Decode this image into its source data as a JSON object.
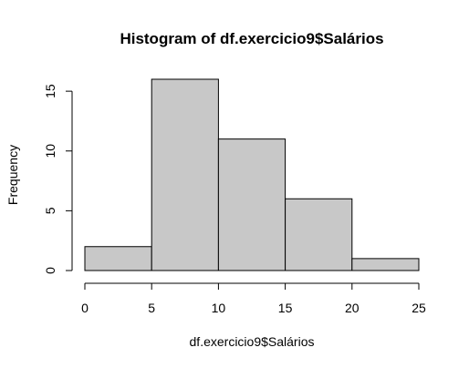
{
  "chart_data": {
    "type": "bar",
    "title": "Histogram of df.exercicio9$Salários",
    "xlabel": "df.exercicio9$Salários",
    "ylabel": "Frequency",
    "bins": [
      {
        "from": 0,
        "to": 5,
        "value": 2
      },
      {
        "from": 5,
        "to": 10,
        "value": 16
      },
      {
        "from": 10,
        "to": 15,
        "value": 11
      },
      {
        "from": 15,
        "to": 20,
        "value": 6
      },
      {
        "from": 20,
        "to": 25,
        "value": 1
      }
    ],
    "xlim": [
      0,
      25
    ],
    "ylim": [
      0,
      16
    ],
    "xticks": [
      0,
      5,
      10,
      15,
      20,
      25
    ],
    "yticks": [
      0,
      5,
      10,
      15
    ],
    "colors": {
      "bar_fill": "#c8c8c8",
      "bar_stroke": "#000000"
    },
    "grid": false,
    "legend": "none"
  }
}
